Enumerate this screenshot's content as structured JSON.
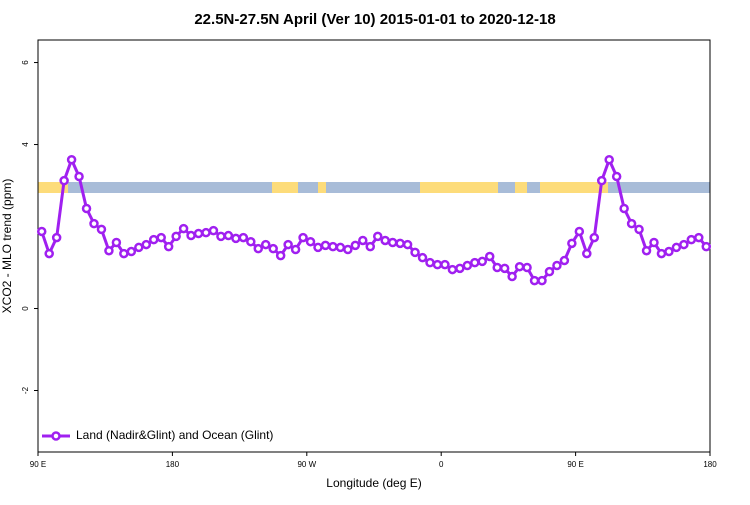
{
  "chart_data": {
    "type": "line",
    "title": "22.5N-27.5N April (Ver 10)   2015-01-01 to 2020-12-18",
    "x_label": "Longitude (deg E)",
    "y_label": "XCO2 - MLO trend (ppm)",
    "xlim": [
      90,
      540
    ],
    "xticks": [
      {
        "value": 90,
        "label": "90 E"
      },
      180,
      {
        "value": 270,
        "label": "90 W"
      },
      {
        "value": 360,
        "label": "0"
      },
      {
        "value": 450,
        "label": "90 E"
      },
      {
        "value": 540,
        "label": "180"
      }
    ],
    "ylim": [
      -3.5,
      6.55
    ],
    "yticks": [
      -2,
      0,
      4,
      6
    ],
    "x": [
      92.5,
      97.5,
      102.5,
      107.5,
      112.5,
      117.5,
      122.5,
      127.5,
      132.5,
      137.5,
      142.5,
      147.5,
      152.5,
      157.5,
      162.5,
      167.5,
      172.5,
      177.5,
      182.5,
      187.5,
      192.5,
      197.5,
      202.5,
      207.5,
      212.5,
      217.5,
      222.5,
      227.5,
      232.5,
      237.5,
      242.5,
      247.5,
      252.5,
      257.5,
      262.5,
      267.5,
      272.5,
      277.5,
      282.5,
      287.5,
      292.5,
      297.5,
      302.5,
      307.5,
      312.5,
      317.5,
      322.5,
      327.5,
      332.5,
      337.5,
      342.5,
      347.5,
      352.5,
      357.5,
      362.5,
      367.5,
      372.5,
      377.5,
      382.5,
      387.5,
      392.5,
      397.5,
      402.5,
      407.5,
      412.5,
      417.5,
      422.5,
      427.5,
      432.5,
      437.5,
      442.5,
      447.5,
      452.5,
      457.5,
      462.5,
      467.5,
      472.5,
      477.5,
      482.5,
      487.5,
      492.5,
      497.5,
      502.5,
      507.5,
      512.5,
      517.5,
      522.5,
      527.5,
      532.5,
      537.5
    ],
    "series": [
      {
        "name": "Land (Nadir&Glint) and Ocean (Glint)",
        "color": "#a020f0",
        "values": [
          1.88,
          1.34,
          1.73,
          3.12,
          3.63,
          3.22,
          2.44,
          2.07,
          1.93,
          1.41,
          1.61,
          1.34,
          1.39,
          1.49,
          1.56,
          1.68,
          1.73,
          1.51,
          1.76,
          1.95,
          1.78,
          1.83,
          1.85,
          1.9,
          1.76,
          1.78,
          1.71,
          1.73,
          1.63,
          1.46,
          1.56,
          1.46,
          1.29,
          1.56,
          1.44,
          1.73,
          1.63,
          1.49,
          1.54,
          1.51,
          1.49,
          1.44,
          1.54,
          1.66,
          1.51,
          1.76,
          1.66,
          1.61,
          1.59,
          1.56,
          1.37,
          1.24,
          1.12,
          1.07,
          1.07,
          0.95,
          0.98,
          1.05,
          1.12,
          1.15,
          1.27,
          1.0,
          0.98,
          0.78,
          1.02,
          1.0,
          0.68,
          0.68,
          0.9,
          1.05,
          1.17,
          1.59,
          1.88,
          1.34,
          1.73,
          3.12,
          3.63,
          3.22,
          2.44,
          2.07,
          1.93,
          1.41,
          1.61,
          1.34,
          1.39,
          1.49,
          1.56,
          1.68,
          1.73,
          1.51
        ]
      }
    ]
  }
}
